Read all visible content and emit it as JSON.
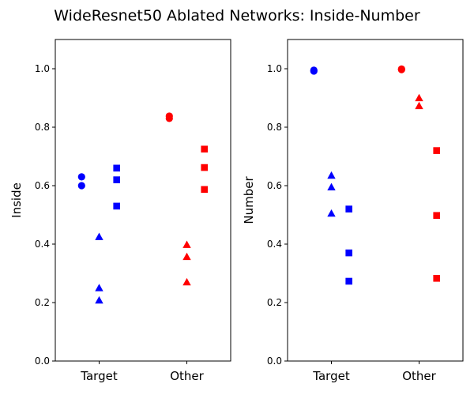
{
  "figure": {
    "title": "WideResnet50 Ablated Networks: Inside-Number"
  },
  "colors": {
    "target": "#0000ff",
    "other": "#ff0000"
  },
  "chart_data": [
    {
      "type": "scatter",
      "ylabel": "Inside",
      "xlabel": "",
      "categories": [
        "Target",
        "Other"
      ],
      "ylim": [
        0,
        1.1
      ],
      "yticks": [
        "0.0",
        "0.2",
        "0.4",
        "0.6",
        "0.8",
        "1.0"
      ],
      "grid": false,
      "series": [
        {
          "marker": "circle",
          "color": "target",
          "category": "Target",
          "offset": -0.2,
          "values": [
            0.63,
            0.6
          ]
        },
        {
          "marker": "triangle",
          "color": "target",
          "category": "Target",
          "offset": 0.0,
          "values": [
            0.425,
            0.25,
            0.208
          ]
        },
        {
          "marker": "square",
          "color": "target",
          "category": "Target",
          "offset": 0.2,
          "values": [
            0.66,
            0.62,
            0.53
          ]
        },
        {
          "marker": "circle",
          "color": "other",
          "category": "Other",
          "offset": -0.2,
          "values": [
            0.838,
            0.83
          ]
        },
        {
          "marker": "triangle",
          "color": "other",
          "category": "Other",
          "offset": 0.0,
          "values": [
            0.398,
            0.357,
            0.27
          ]
        },
        {
          "marker": "square",
          "color": "other",
          "category": "Other",
          "offset": 0.2,
          "values": [
            0.725,
            0.662,
            0.587
          ]
        }
      ]
    },
    {
      "type": "scatter",
      "ylabel": "Number",
      "xlabel": "",
      "categories": [
        "Target",
        "Other"
      ],
      "ylim": [
        0,
        1.1
      ],
      "yticks": [
        "0.0",
        "0.2",
        "0.4",
        "0.6",
        "0.8",
        "1.0"
      ],
      "grid": false,
      "series": [
        {
          "marker": "circle",
          "color": "target",
          "category": "Target",
          "offset": -0.2,
          "values": [
            0.995,
            0.992
          ]
        },
        {
          "marker": "triangle",
          "color": "target",
          "category": "Target",
          "offset": 0.0,
          "values": [
            0.635,
            0.595,
            0.505
          ]
        },
        {
          "marker": "square",
          "color": "target",
          "category": "Target",
          "offset": 0.2,
          "values": [
            0.52,
            0.37,
            0.273
          ]
        },
        {
          "marker": "circle",
          "color": "other",
          "category": "Other",
          "offset": -0.2,
          "values": [
            0.999,
            0.997
          ]
        },
        {
          "marker": "triangle",
          "color": "other",
          "category": "Other",
          "offset": 0.0,
          "values": [
            0.9,
            0.873
          ]
        },
        {
          "marker": "square",
          "color": "other",
          "category": "Other",
          "offset": 0.2,
          "values": [
            0.72,
            0.498,
            0.283
          ]
        }
      ]
    }
  ]
}
